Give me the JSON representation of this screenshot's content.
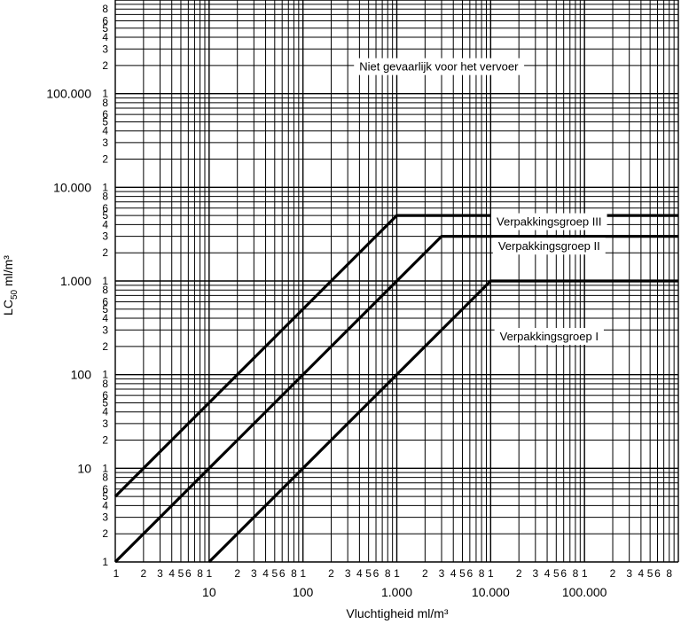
{
  "chart_data": {
    "type": "line",
    "x_scale": "log",
    "y_scale": "log",
    "xlim": [
      1,
      1000000
    ],
    "ylim": [
      1,
      1000000
    ],
    "grid": true,
    "xlabel": "Vluchtigheid ml/m³",
    "ylabel_main": "LC",
    "ylabel_sub": "50",
    "ylabel_rest": "ml/m³",
    "x_major_ticks": [
      {
        "value": 10,
        "label": "10"
      },
      {
        "value": 100,
        "label": "100"
      },
      {
        "value": 1000,
        "label": "1.000"
      },
      {
        "value": 10000,
        "label": "10.000"
      },
      {
        "value": 100000,
        "label": "100.000"
      }
    ],
    "y_major_ticks": [
      {
        "value": 10,
        "label": "10"
      },
      {
        "value": 100,
        "label": "100"
      },
      {
        "value": 1000,
        "label": "1.000"
      },
      {
        "value": 10000,
        "label": "10.000"
      },
      {
        "value": 100000,
        "label": "100.000"
      }
    ],
    "minor_tick_labels": [
      "1",
      "2",
      "3",
      "4",
      "5",
      "6",
      "8"
    ],
    "series": [
      {
        "points": [
          [
            1,
            5
          ],
          [
            1000,
            5000
          ],
          [
            1000000,
            5000
          ]
        ]
      },
      {
        "points": [
          [
            1,
            1
          ],
          [
            3000,
            3000
          ],
          [
            1000000,
            3000
          ]
        ]
      },
      {
        "points": [
          [
            10,
            1
          ],
          [
            10000,
            1000
          ],
          [
            1000000,
            1000
          ]
        ]
      }
    ],
    "annotations": [
      {
        "text": "Niet gevaarlijk voor het vervoer",
        "x": 2800,
        "y": 190000
      },
      {
        "text": "Verpakkingsgroep III",
        "x": 42000,
        "y": 4200
      },
      {
        "text": "Verpakkingsgroep II",
        "x": 42000,
        "y": 2300
      },
      {
        "text": "Verpakkingsgroep I",
        "x": 42000,
        "y": 250
      }
    ]
  }
}
